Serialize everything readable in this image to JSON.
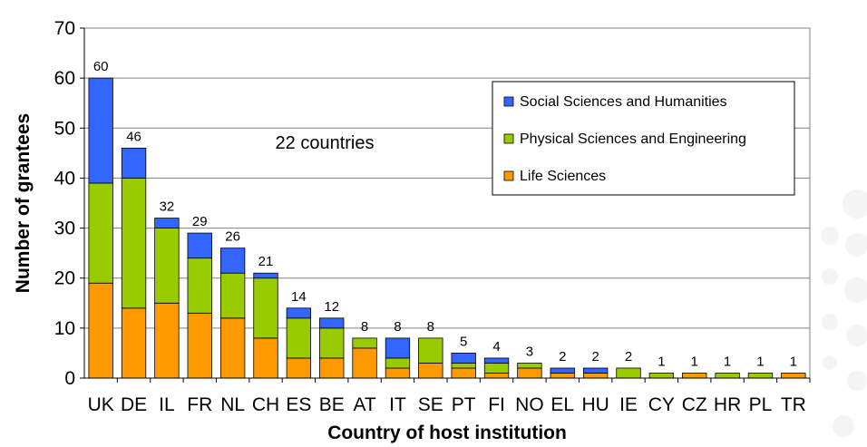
{
  "chart_data": {
    "type": "bar",
    "stacked": true,
    "title": "",
    "xlabel": "Country of host institution",
    "ylabel": "Number of grantees",
    "ylim": [
      0,
      70
    ],
    "yticks": [
      "0",
      "10",
      "20",
      "30",
      "40",
      "50",
      "60",
      "70"
    ],
    "grid": true,
    "legend_position": "top-right",
    "annotation": "22 countries",
    "categories": [
      "UK",
      "DE",
      "IL",
      "FR",
      "NL",
      "CH",
      "ES",
      "BE",
      "AT",
      "IT",
      "SE",
      "PT",
      "FI",
      "NO",
      "EL",
      "HU",
      "IE",
      "CY",
      "CZ",
      "HR",
      "PL",
      "TR"
    ],
    "totals": [
      60,
      46,
      32,
      29,
      26,
      21,
      14,
      12,
      8,
      8,
      8,
      5,
      4,
      3,
      2,
      2,
      2,
      1,
      1,
      1,
      1,
      1
    ],
    "total_labels": [
      "60",
      "46",
      "32",
      "29",
      "26",
      "21",
      "14",
      "12",
      "8",
      "8",
      "8",
      "5",
      "4",
      "3",
      "2",
      "2",
      "2",
      "1",
      "1",
      "1",
      "1",
      "1"
    ],
    "series": [
      {
        "name": "Life Sciences",
        "color": "#ff9900",
        "values": [
          19,
          14,
          15,
          13,
          12,
          8,
          4,
          4,
          6,
          2,
          3,
          2,
          1,
          2,
          1,
          1,
          0,
          0,
          1,
          0,
          0,
          1
        ]
      },
      {
        "name": "Physical Sciences and Engineering",
        "color": "#99cc00",
        "values": [
          20,
          26,
          15,
          11,
          9,
          12,
          8,
          6,
          2,
          2,
          5,
          1,
          2,
          1,
          0,
          0,
          2,
          1,
          0,
          1,
          1,
          0
        ]
      },
      {
        "name": "Social Sciences and Humanities",
        "color": "#3366ff",
        "values": [
          21,
          6,
          2,
          5,
          5,
          1,
          2,
          2,
          0,
          4,
          0,
          2,
          1,
          0,
          1,
          1,
          0,
          0,
          0,
          0,
          0,
          0
        ]
      }
    ],
    "legend_order": [
      "Social Sciences and Humanities",
      "Physical Sciences and Engineering",
      "Life Sciences"
    ]
  }
}
